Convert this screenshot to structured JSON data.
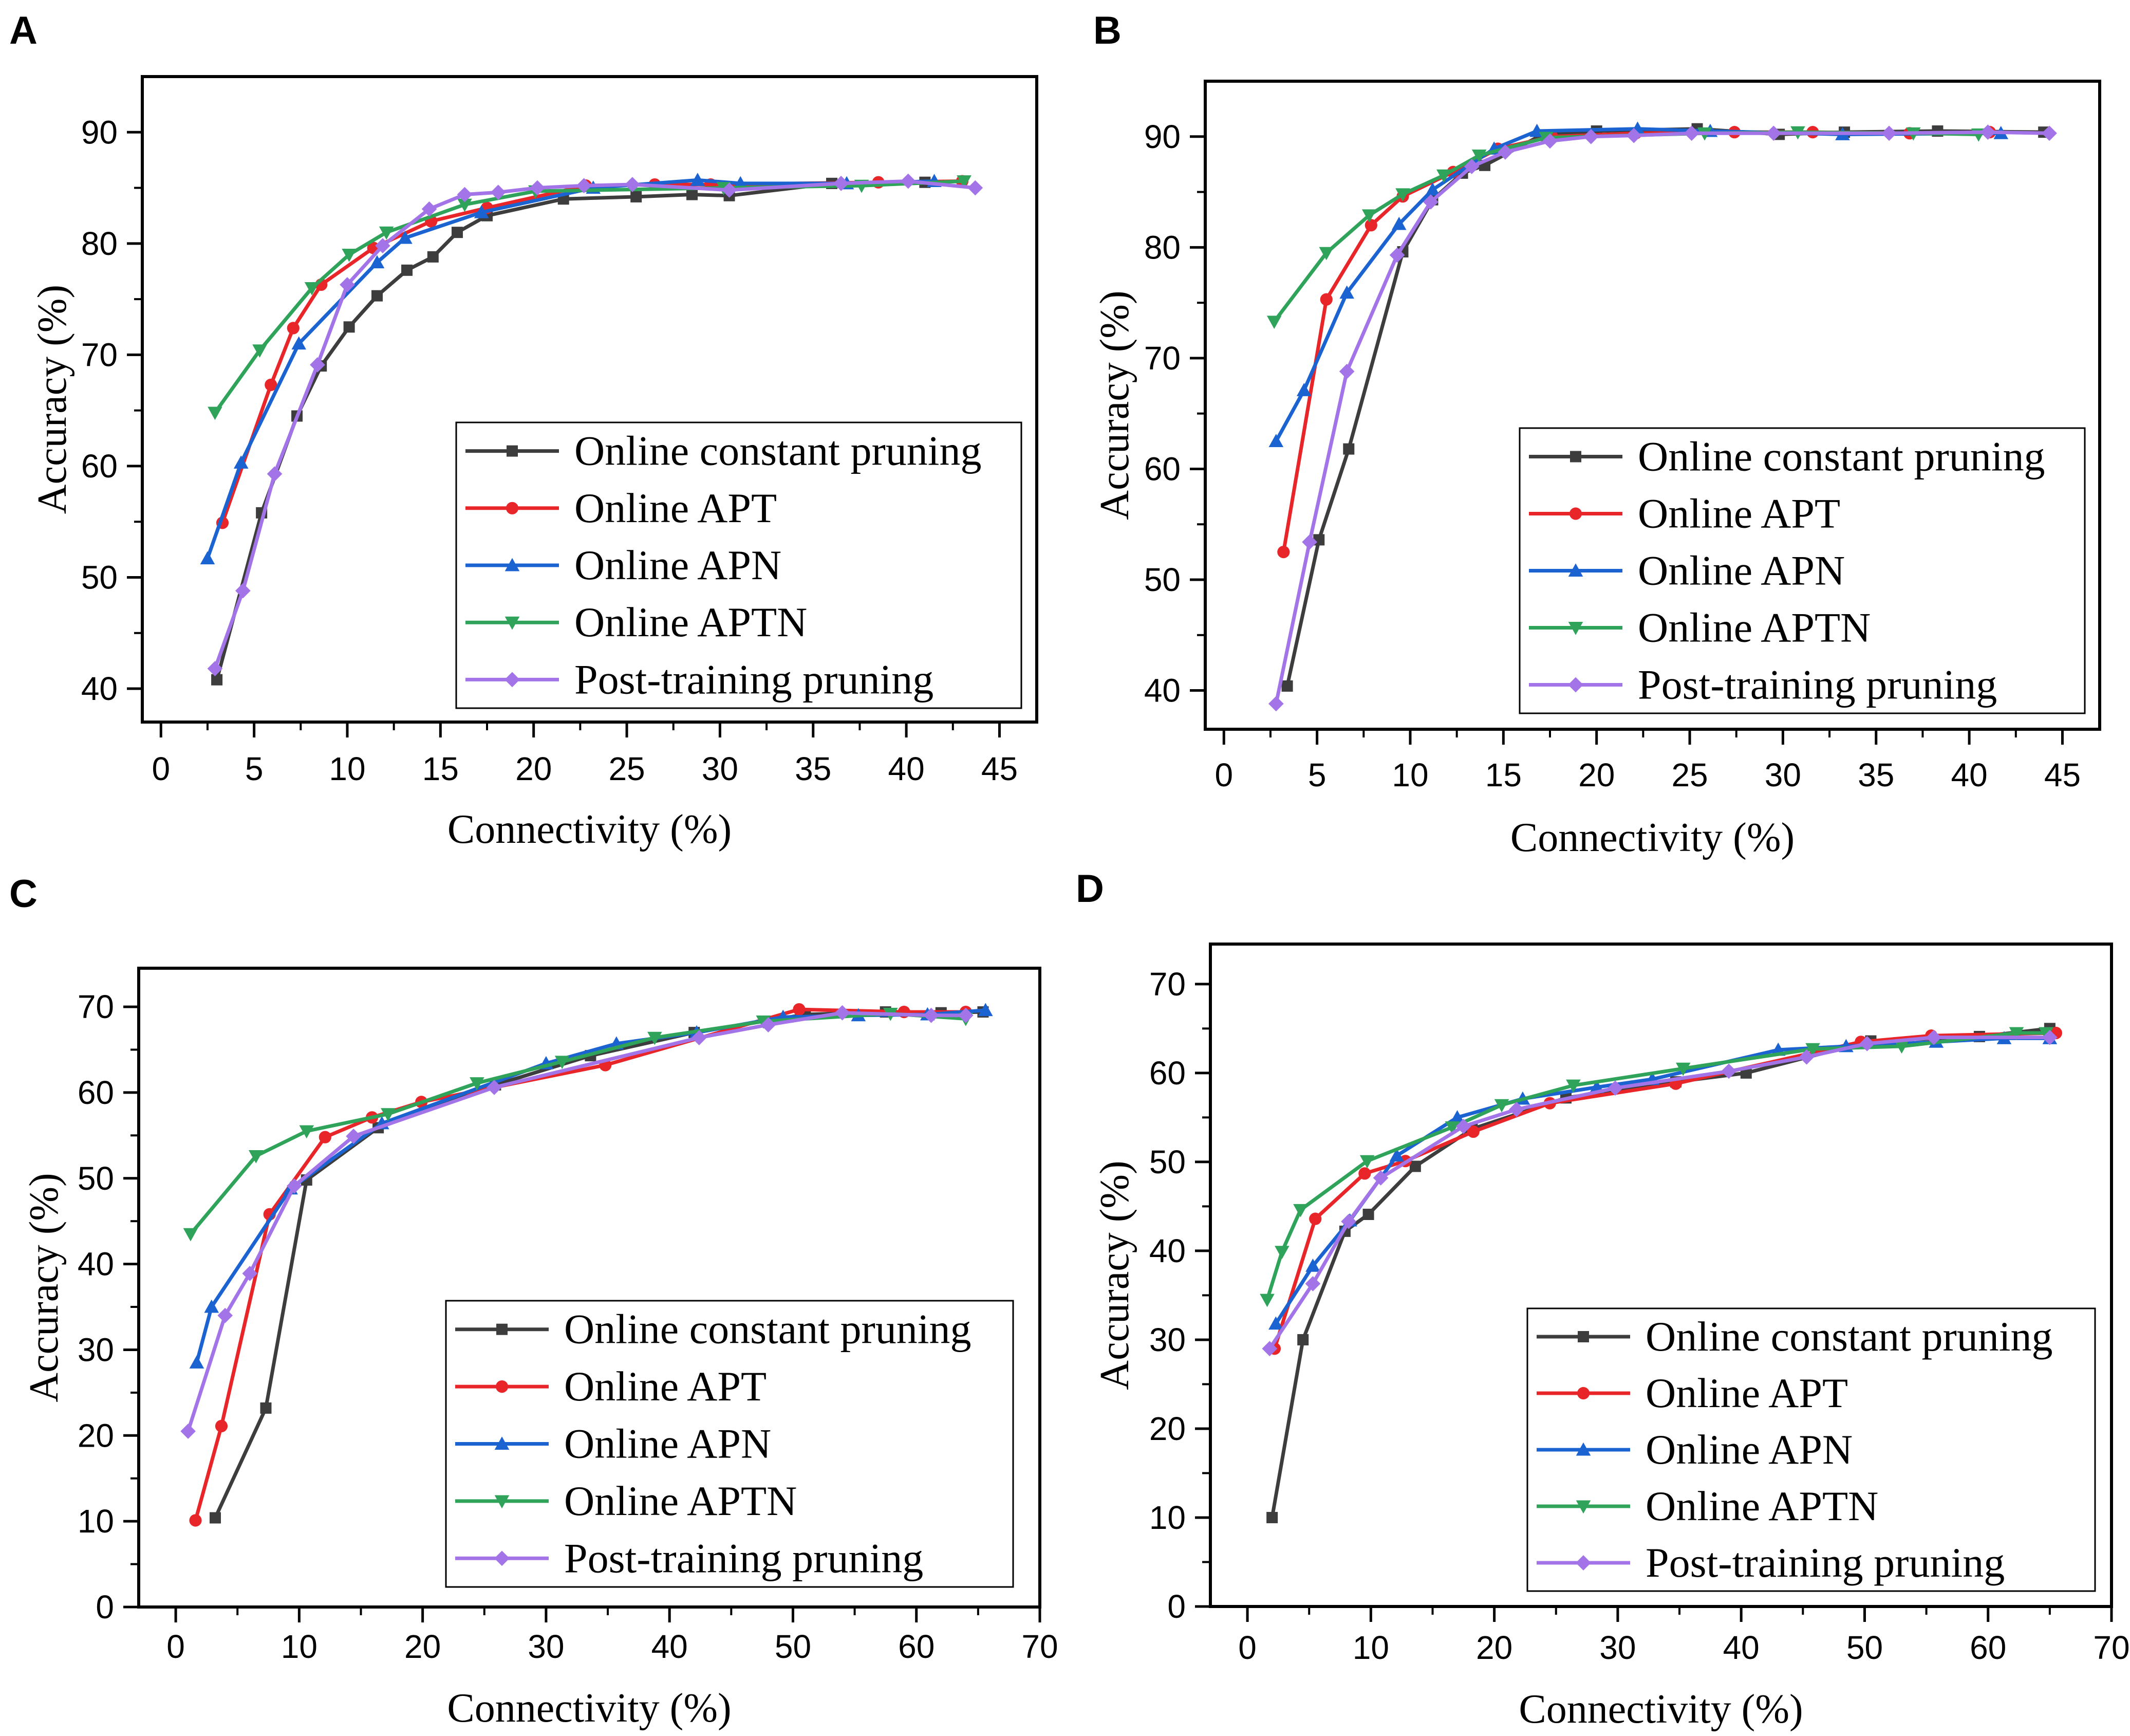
{
  "figure": {
    "series_names": [
      "Online constant pruning",
      "Online APT",
      "Online APN",
      "Online APTN",
      "Post-training pruning"
    ],
    "series_colors": [
      "#3d3d3d",
      "#e8262a",
      "#1b63d1",
      "#2fa35a",
      "#a374e8"
    ],
    "series_markers": [
      "square",
      "circle",
      "triangle-up",
      "triangle-down",
      "diamond"
    ]
  },
  "chart_data": [
    {
      "panel": "A",
      "type": "line",
      "xlabel": "Connectivity (%)",
      "ylabel": "Accuracy (%)",
      "xlim": [
        -1,
        47
      ],
      "ylim": [
        37,
        95
      ],
      "xticks": [
        0,
        5,
        10,
        15,
        20,
        25,
        30,
        35,
        40,
        45
      ],
      "yticks": [
        40,
        50,
        60,
        70,
        80,
        90
      ],
      "legend_position": "bottom-right",
      "series": [
        {
          "name": "Online constant pruning",
          "x": [
            3,
            5.4,
            7.3,
            8.6,
            10.1,
            11.6,
            13.2,
            14.6,
            15.9,
            17.5,
            21.6,
            25.5,
            28.5,
            30.5,
            36,
            41
          ],
          "y": [
            40.8,
            55.8,
            64.5,
            69,
            72.5,
            75.3,
            77.6,
            78.8,
            81,
            82.5,
            84,
            84.2,
            84.4,
            84.3,
            85.4,
            85.5
          ]
        },
        {
          "name": "Online APT",
          "x": [
            3.3,
            5.9,
            7.1,
            8.6,
            11.4,
            14.5,
            17.5,
            22.8,
            26.5,
            29.5,
            38.5,
            43
          ],
          "y": [
            54.9,
            67.3,
            72.4,
            76.3,
            79.6,
            82,
            83.2,
            85.2,
            85.3,
            85.3,
            85.5,
            85.6
          ]
        },
        {
          "name": "Online APN",
          "x": [
            2.5,
            4.3,
            7.4,
            11.6,
            13.1,
            17.2,
            23.2,
            28.8,
            31.1,
            36.8,
            41.5
          ],
          "y": [
            51.7,
            60.3,
            71,
            78.3,
            80.5,
            82.8,
            85,
            85.7,
            85.4,
            85.4,
            85.6
          ]
        },
        {
          "name": "Online APTN",
          "x": [
            2.9,
            5.3,
            8.1,
            10.1,
            12.1,
            16.3,
            20.1,
            30.2,
            37.6,
            43.1
          ],
          "y": [
            64.8,
            70.4,
            76,
            79,
            81,
            83.5,
            84.7,
            85,
            85.2,
            85.6
          ]
        },
        {
          "name": "Post-training pruning",
          "x": [
            2.9,
            4.4,
            6.1,
            8.4,
            10,
            11.9,
            14.4,
            16.3,
            18.1,
            20.2,
            22.7,
            25.3,
            30.5,
            36.5,
            40.1,
            43.7
          ],
          "y": [
            41.8,
            48.8,
            59.3,
            69.1,
            76.3,
            79.8,
            83.1,
            84.4,
            84.6,
            85,
            85.2,
            85.3,
            84.8,
            85.4,
            85.6,
            85
          ]
        }
      ]
    },
    {
      "panel": "B",
      "type": "line",
      "xlabel": "Connectivity (%)",
      "ylabel": "Accuracy (%)",
      "xlim": [
        -1,
        47
      ],
      "ylim": [
        36.5,
        95
      ],
      "xticks": [
        0,
        5,
        10,
        15,
        20,
        25,
        30,
        35,
        40,
        45
      ],
      "yticks": [
        40,
        50,
        60,
        70,
        80,
        90
      ],
      "legend_position": "bottom-right",
      "series": [
        {
          "name": "Online constant pruning",
          "x": [
            3.4,
            5.1,
            6.7,
            9.6,
            11.2,
            12.8,
            14,
            17,
            20,
            25.4,
            29.8,
            33.3,
            38.3,
            44
          ],
          "y": [
            40.4,
            53.6,
            61.8,
            79.6,
            84.3,
            86.7,
            87.4,
            90.1,
            90.5,
            90.7,
            90.2,
            90.4,
            90.5,
            90.4
          ]
        },
        {
          "name": "Online APT",
          "x": [
            3.2,
            5.5,
            7.9,
            9.6,
            12.3,
            14.7,
            17.6,
            22.1,
            27.4,
            31.6,
            36.8,
            41.1
          ],
          "y": [
            52.5,
            75.3,
            82,
            84.6,
            86.8,
            88.9,
            90,
            90.3,
            90.4,
            90.4,
            90.3,
            90.4
          ]
        },
        {
          "name": "Online APN",
          "x": [
            2.8,
            4.3,
            6.6,
            9.4,
            11.2,
            14.5,
            16.8,
            22.2,
            26.1,
            33.2,
            41.7
          ],
          "y": [
            62.5,
            67.1,
            75.9,
            82.1,
            85.2,
            88.9,
            90.5,
            90.7,
            90.5,
            90.2,
            90.3
          ]
        },
        {
          "name": "Online APTN",
          "x": [
            2.7,
            5.5,
            7.8,
            9.6,
            11.8,
            13.7,
            17.3,
            25.8,
            30.8,
            37,
            40.5
          ],
          "y": [
            73.3,
            79.5,
            82.9,
            84.8,
            86.5,
            88.3,
            89.9,
            90.3,
            90.4,
            90.3,
            90.2
          ]
        },
        {
          "name": "Post-training pruning",
          "x": [
            2.8,
            4.6,
            6.6,
            9.3,
            11.1,
            13.3,
            15.1,
            17.5,
            19.7,
            22,
            25.1,
            29.5,
            35.7,
            41,
            44.3
          ],
          "y": [
            38.8,
            53.4,
            68.8,
            79.3,
            84.1,
            87.3,
            88.6,
            89.6,
            90,
            90.1,
            90.3,
            90.3,
            90.3,
            90.4,
            90.3
          ]
        }
      ]
    },
    {
      "panel": "C",
      "type": "line",
      "xlabel": "Connectivity (%)",
      "ylabel": "Accuracy (%)",
      "xlim": [
        -3,
        70
      ],
      "ylim": [
        0,
        74.5
      ],
      "xticks": [
        0,
        10,
        20,
        30,
        40,
        50,
        60,
        70
      ],
      "yticks": [
        0,
        10,
        20,
        30,
        40,
        50,
        60,
        70
      ],
      "legend_position": "bottom-right",
      "series": [
        {
          "name": "Online constant pruning",
          "x": [
            3.2,
            7.3,
            10.6,
            16.4,
            25.9,
            33.6,
            42,
            51,
            57.5,
            62,
            65.4
          ],
          "y": [
            10.4,
            23.2,
            49.8,
            55.9,
            60.9,
            64.3,
            67,
            69.1,
            69.4,
            69.3,
            69.4
          ]
        },
        {
          "name": "Online APT",
          "x": [
            1.6,
            3.7,
            7.6,
            12.1,
            15.9,
            19.9,
            34.8,
            50.5,
            59,
            64
          ],
          "y": [
            10.1,
            21.1,
            45.8,
            54.8,
            57.1,
            58.9,
            63.2,
            69.7,
            69.4,
            69.4
          ]
        },
        {
          "name": "Online APN",
          "x": [
            1.7,
            2.9,
            9.3,
            16.7,
            30,
            35.7,
            42.2,
            49.2,
            55.3,
            60.9,
            65.6
          ],
          "y": [
            28.5,
            35,
            48.8,
            56.4,
            63.4,
            65.7,
            67,
            68.8,
            69,
            69.1,
            69.6
          ]
        },
        {
          "name": "Online APTN",
          "x": [
            1.2,
            6.5,
            10.6,
            17.2,
            24.4,
            31.3,
            38.8,
            47.6,
            57.9,
            64
          ],
          "y": [
            43.5,
            52.6,
            55.5,
            57.5,
            61.1,
            63.6,
            66.4,
            68.3,
            69.2,
            68.6
          ]
        },
        {
          "name": "Post-training pruning",
          "x": [
            1,
            4,
            6,
            9.6,
            14.4,
            25.8,
            42.4,
            48,
            54,
            61.2,
            64
          ],
          "y": [
            20.5,
            34,
            38.9,
            49.1,
            54.9,
            60.6,
            66.4,
            67.9,
            69.3,
            69,
            69
          ]
        }
      ]
    },
    {
      "panel": "D",
      "type": "line",
      "xlabel": "Connectivity (%)",
      "ylabel": "Accuracy (%)",
      "xlim": [
        -3,
        70
      ],
      "ylim": [
        0,
        74.5
      ],
      "xticks": [
        0,
        10,
        20,
        30,
        40,
        50,
        60,
        70
      ],
      "yticks": [
        0,
        10,
        20,
        30,
        40,
        50,
        60,
        70
      ],
      "legend_position": "bottom-right",
      "series": [
        {
          "name": "Online constant pruning",
          "x": [
            2,
            4.5,
            7.9,
            9.8,
            13.6,
            18.2,
            25.8,
            34.7,
            40.4,
            50.5,
            59.3,
            65
          ],
          "y": [
            10,
            30,
            42.2,
            44.1,
            49.5,
            53.7,
            57.2,
            59,
            60,
            63.6,
            64.1,
            65
          ]
        },
        {
          "name": "Online APT",
          "x": [
            2.2,
            5.5,
            9.5,
            12.8,
            18.3,
            24.5,
            34.7,
            49.7,
            55.4,
            65.5
          ],
          "y": [
            29,
            43.6,
            48.7,
            50.1,
            53.4,
            56.6,
            58.8,
            63.5,
            64.2,
            64.5
          ]
        },
        {
          "name": "Online APN",
          "x": [
            2.3,
            5.3,
            8.3,
            12.1,
            17,
            22.3,
            28.3,
            32.8,
            43,
            48.5,
            55.8,
            61.3,
            65
          ],
          "y": [
            31.8,
            38.3,
            43.4,
            50.7,
            55,
            57.1,
            58.4,
            59.3,
            62.6,
            63,
            63.5,
            63.9,
            63.9
          ]
        },
        {
          "name": "Online APTN",
          "x": [
            1.6,
            2.8,
            4.3,
            9.7,
            16.6,
            20.6,
            26.4,
            35.3,
            45.8,
            53,
            62.3,
            64.7
          ],
          "y": [
            34.5,
            39.9,
            44.6,
            50.1,
            53.9,
            56.4,
            58.6,
            60.5,
            62.7,
            63,
            64.5,
            64.5
          ]
        },
        {
          "name": "Post-training pruning",
          "x": [
            1.8,
            5.3,
            8.2,
            10.8,
            17.5,
            21.8,
            29.8,
            39,
            45.3,
            50.2,
            55.6,
            65
          ],
          "y": [
            29,
            36.3,
            43.3,
            48.2,
            54,
            55.9,
            58.3,
            60.2,
            61.8,
            63.3,
            64,
            64
          ]
        }
      ]
    }
  ]
}
